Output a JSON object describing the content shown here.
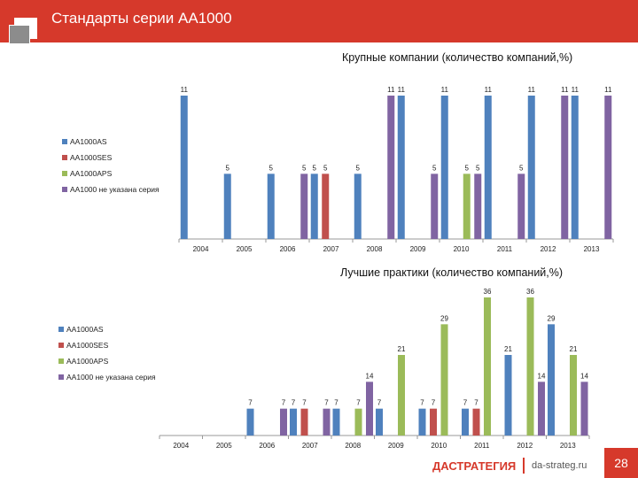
{
  "header": {
    "title": "Стандарты серии АА1000"
  },
  "colors": {
    "accent": "#d6392b",
    "AA1000AS": "#4f81bd",
    "AA1000SES": "#c0504d",
    "AA1000APS": "#9bbb59",
    "unknown": "#8064a2"
  },
  "chart_data": [
    {
      "type": "bar",
      "title": "Крупные компании (количество компаний,%)",
      "categories": [
        "2004",
        "2005",
        "2006",
        "2007",
        "2008",
        "2009",
        "2010",
        "2011",
        "2012",
        "2013"
      ],
      "legend_position": "left",
      "series": [
        {
          "name": "АА1000AS",
          "values": [
            11,
            5,
            5,
            5,
            5,
            11,
            11,
            11,
            11,
            11
          ]
        },
        {
          "name": "АА1000SES",
          "values": [
            null,
            null,
            null,
            5,
            null,
            null,
            null,
            null,
            null,
            null
          ]
        },
        {
          "name": "АА1000APS",
          "values": [
            null,
            null,
            null,
            null,
            null,
            null,
            5,
            null,
            null,
            null
          ]
        },
        {
          "name": "АА1000 не указана серия",
          "values": [
            null,
            null,
            5,
            null,
            11,
            5,
            5,
            5,
            11,
            11
          ]
        }
      ],
      "ylim": [
        0,
        11
      ]
    },
    {
      "type": "bar",
      "title": "Лучшие практики (количество компаний,%)",
      "categories": [
        "2004",
        "2005",
        "2006",
        "2007",
        "2008",
        "2009",
        "2010",
        "2011",
        "2012",
        "2013"
      ],
      "legend_position": "left",
      "series": [
        {
          "name": "АА1000AS",
          "values": [
            null,
            null,
            7,
            7,
            7,
            7,
            7,
            7,
            21,
            29
          ]
        },
        {
          "name": "АА1000SES",
          "values": [
            null,
            null,
            null,
            7,
            null,
            null,
            7,
            7,
            null,
            null
          ]
        },
        {
          "name": "АА1000APS",
          "values": [
            null,
            null,
            null,
            null,
            7,
            21,
            29,
            36,
            36,
            21
          ]
        },
        {
          "name": "АА1000 не указана серия",
          "values": [
            null,
            null,
            7,
            7,
            14,
            null,
            null,
            null,
            14,
            14
          ]
        }
      ],
      "ylim": [
        0,
        36
      ]
    }
  ],
  "footer": {
    "logo": "ДАСТРАТЕГИЯ",
    "url": "da-strateg.ru",
    "page_number": "28"
  }
}
